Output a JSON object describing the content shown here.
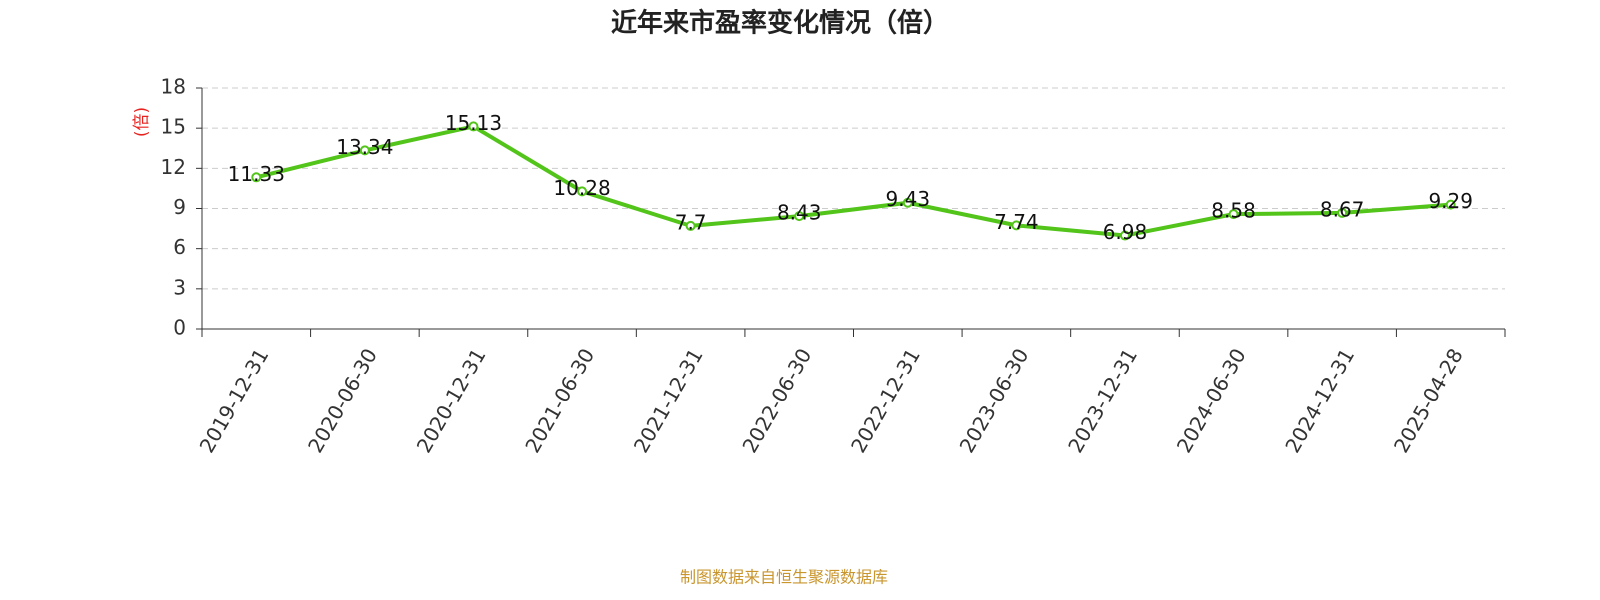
{
  "chart_data": {
    "type": "line",
    "title": "近年来市盈率变化情况（倍）",
    "y_label": "(倍)",
    "source": "制图数据来自恒生聚源数据库",
    "categories": [
      "2019-12-31",
      "2020-06-30",
      "2020-12-31",
      "2021-06-30",
      "2021-12-31",
      "2022-06-30",
      "2022-12-31",
      "2023-06-30",
      "2023-12-31",
      "2024-06-30",
      "2024-12-31",
      "2025-04-28"
    ],
    "series": [
      {
        "name": "市盈率",
        "color": "#52c41a",
        "values": [
          11.33,
          13.34,
          15.13,
          10.28,
          7.7,
          8.43,
          9.43,
          7.74,
          6.98,
          8.58,
          8.67,
          9.29
        ]
      }
    ],
    "ylim": [
      0,
      18
    ],
    "yticks": [
      0,
      3,
      6,
      9,
      12,
      15,
      18
    ],
    "grid": true
  }
}
